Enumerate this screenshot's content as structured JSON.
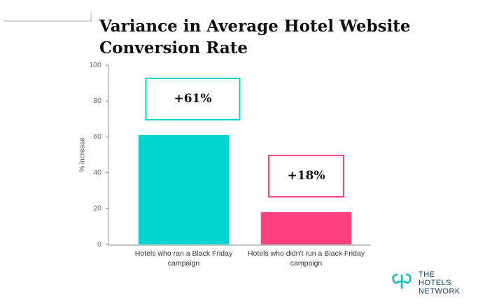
{
  "chart_data": {
    "type": "bar",
    "title": "Variance in Average Hotel Website Conversion Rate",
    "y_label": "% increase",
    "categories": [
      "Hotels who ran a Black Friday campaign",
      "Hotels who didn't run a Black Friday campaign"
    ],
    "values": [
      61,
      18
    ],
    "value_labels": [
      "+61%",
      "+18%"
    ],
    "colors": [
      "#00d5cd",
      "#ff3f7e"
    ],
    "ylim": [
      0,
      100
    ],
    "yticks": [
      0,
      20,
      40,
      60,
      80,
      100
    ],
    "grid": false
  },
  "logo": {
    "lines": [
      "THE",
      "HOTELS",
      "NETWORK"
    ]
  }
}
